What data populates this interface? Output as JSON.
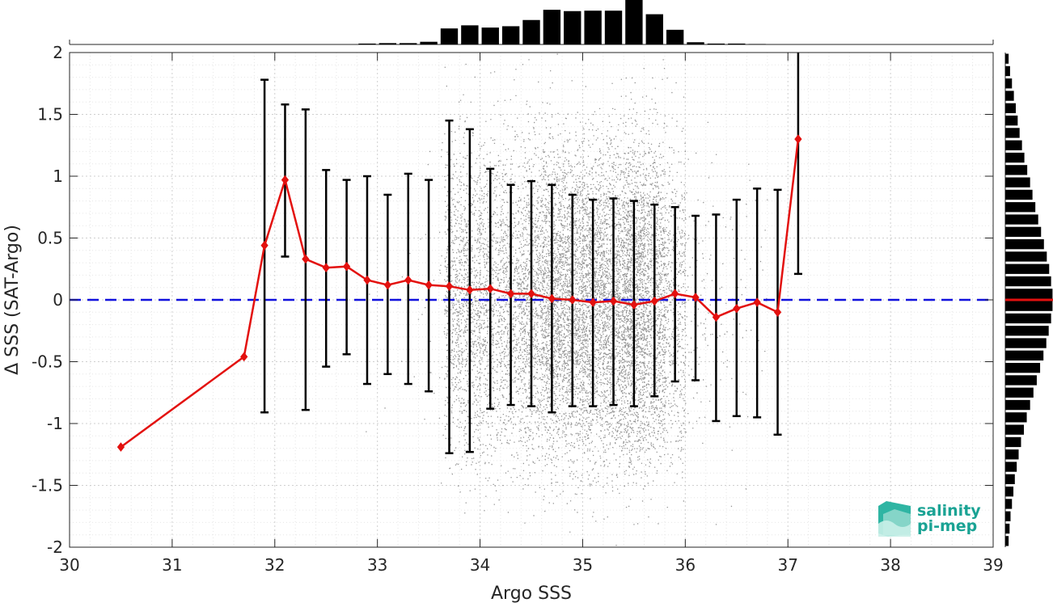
{
  "chart_data": {
    "type": "scatter",
    "xlabel": "Argo SSS",
    "ylabel": "Δ SSS (SAT-Argo)",
    "xlim": [
      30,
      39
    ],
    "ylim": [
      -2,
      2
    ],
    "x_ticks": [
      "30",
      "31",
      "32",
      "33",
      "34",
      "35",
      "36",
      "37",
      "38",
      "39"
    ],
    "y_ticks": [
      "-2",
      "-1.5",
      "-1",
      "-0.5",
      "0",
      "0.5",
      "1",
      "1.5",
      "2"
    ],
    "grid": true,
    "scatter_cloud": {
      "description_color": "#888888",
      "x_range": [
        33.7,
        36.0
      ],
      "y_range": [
        -2,
        2
      ]
    },
    "binned_mean": {
      "color": "#e3110f",
      "x": [
        30.5,
        31.7,
        31.9,
        32.1,
        32.3,
        32.5,
        32.7,
        32.9,
        33.1,
        33.3,
        33.5,
        33.7,
        33.9,
        34.1,
        34.3,
        34.5,
        34.7,
        34.9,
        35.1,
        35.3,
        35.5,
        35.7,
        35.9,
        36.1,
        36.3,
        36.5,
        36.7,
        36.9,
        37.1
      ],
      "y": [
        -1.19,
        -0.46,
        0.44,
        0.97,
        0.33,
        0.26,
        0.27,
        0.16,
        0.12,
        0.16,
        0.12,
        0.11,
        0.08,
        0.09,
        0.05,
        0.05,
        0.01,
        0.0,
        -0.02,
        -0.01,
        -0.04,
        -0.01,
        0.05,
        0.02,
        -0.14,
        -0.07,
        -0.02,
        -0.1,
        1.3
      ]
    },
    "error_bars": {
      "color": "#000000",
      "x": [
        31.9,
        32.1,
        32.3,
        32.5,
        32.7,
        32.9,
        33.1,
        33.3,
        33.5,
        33.7,
        33.9,
        34.1,
        34.3,
        34.5,
        34.7,
        34.9,
        35.1,
        35.3,
        35.5,
        35.7,
        35.9,
        36.1,
        36.3,
        36.5,
        36.7,
        36.9,
        37.1
      ],
      "lower": [
        -0.91,
        0.35,
        -0.89,
        -0.54,
        -0.44,
        -0.68,
        -0.6,
        -0.68,
        -0.74,
        -1.24,
        -1.23,
        -0.88,
        -0.85,
        -0.86,
        -0.91,
        -0.86,
        -0.86,
        -0.85,
        -0.86,
        -0.78,
        -0.66,
        -0.65,
        -0.98,
        -0.94,
        -0.95,
        -1.09,
        0.21
      ],
      "upper": [
        1.78,
        1.58,
        1.54,
        1.05,
        0.97,
        1.0,
        0.85,
        1.02,
        0.97,
        1.45,
        1.38,
        1.06,
        0.93,
        0.96,
        0.93,
        0.85,
        0.81,
        0.82,
        0.8,
        0.77,
        0.75,
        0.68,
        0.69,
        0.81,
        0.9,
        0.89,
        2.0
      ]
    },
    "zero_line": {
      "y": 0,
      "color": "#1111dd",
      "style": "dashed"
    },
    "top_histogram": {
      "x": [
        32.9,
        33.1,
        33.3,
        33.5,
        33.7,
        33.9,
        34.1,
        34.3,
        34.5,
        34.7,
        34.9,
        35.1,
        35.3,
        35.5,
        35.7,
        35.9,
        36.1,
        36.3,
        36.5,
        36.7
      ],
      "counts": [
        0.02,
        0.03,
        0.03,
        0.06,
        0.36,
        0.43,
        0.38,
        0.41,
        0.55,
        0.78,
        0.75,
        0.76,
        0.76,
        1.0,
        0.68,
        0.33,
        0.05,
        0.02,
        0.02,
        0.01
      ]
    },
    "right_histogram": {
      "y": [
        1.95,
        1.85,
        1.75,
        1.65,
        1.55,
        1.45,
        1.35,
        1.25,
        1.15,
        1.05,
        0.95,
        0.85,
        0.75,
        0.65,
        0.55,
        0.45,
        0.35,
        0.25,
        0.15,
        0.05,
        -0.05,
        -0.15,
        -0.25,
        -0.35,
        -0.45,
        -0.55,
        -0.65,
        -0.75,
        -0.85,
        -0.95,
        -1.05,
        -1.15,
        -1.25,
        -1.35,
        -1.45,
        -1.55,
        -1.65,
        -1.75,
        -1.85,
        -1.95
      ],
      "counts": [
        0.07,
        0.1,
        0.14,
        0.18,
        0.22,
        0.26,
        0.3,
        0.35,
        0.4,
        0.46,
        0.52,
        0.57,
        0.63,
        0.69,
        0.75,
        0.81,
        0.87,
        0.92,
        0.96,
        0.99,
        0.99,
        0.96,
        0.91,
        0.86,
        0.8,
        0.73,
        0.66,
        0.59,
        0.52,
        0.45,
        0.39,
        0.33,
        0.28,
        0.24,
        0.2,
        0.17,
        0.14,
        0.11,
        0.09,
        0.07
      ],
      "mean_marker_y": 0.0,
      "mean_marker_color": "#e3110f"
    }
  },
  "logo": {
    "line1": "salinity",
    "line2": "pi-mep",
    "color": "#1aa394"
  }
}
